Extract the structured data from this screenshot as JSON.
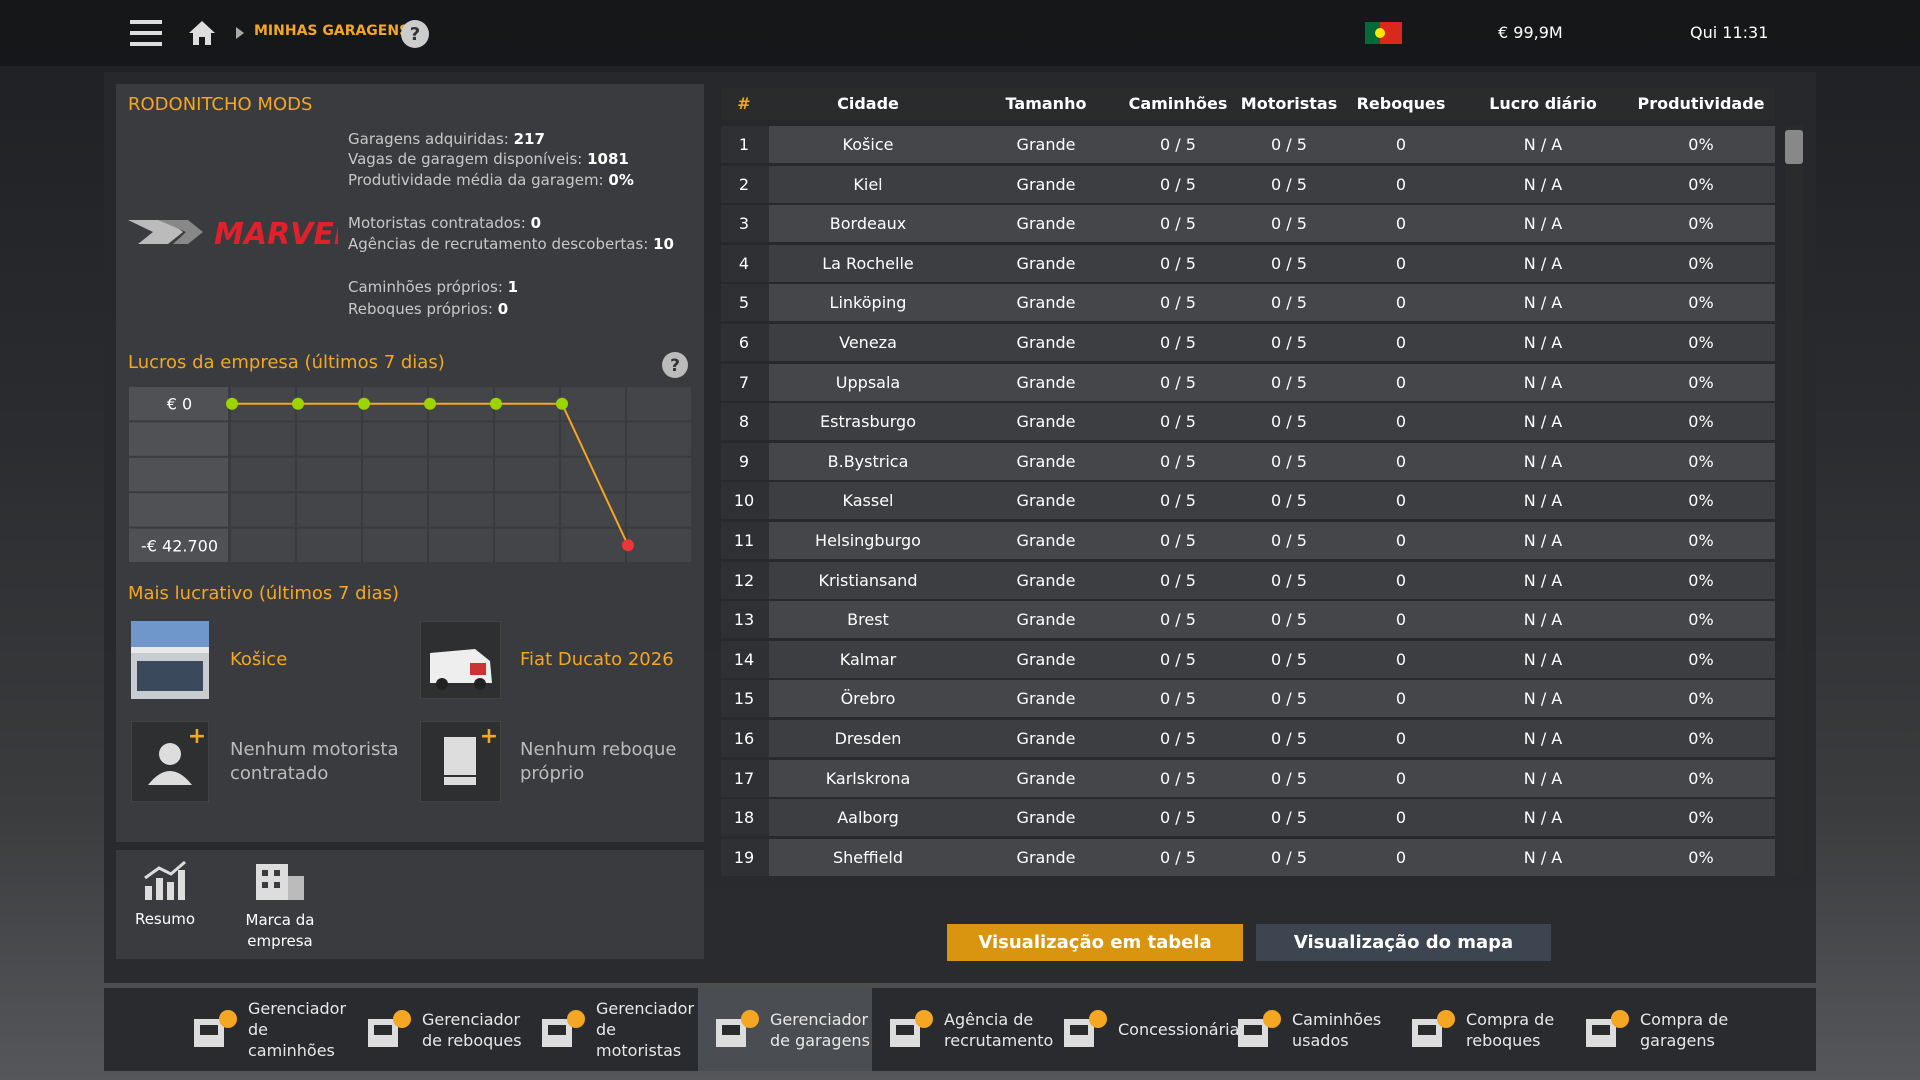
{
  "header": {
    "breadcrumb": "MINHAS GARAGENS",
    "money": "€ 99,9M",
    "time": "Qui 11:31"
  },
  "company": {
    "name": "RODONITCHO MODS",
    "logo": "MARVEL",
    "stats": [
      [
        {
          "label": "Garagens adquiridas:",
          "value": 217
        },
        {
          "label": "Vagas de garagem disponíveis:",
          "value": 1081
        },
        {
          "label": "Produtividade média da garagem:",
          "value": "0%"
        }
      ],
      [
        {
          "label": "Motoristas contratados:",
          "value": 0
        },
        {
          "label": "Agências de recrutamento descobertas:",
          "value": 10
        }
      ],
      [
        {
          "label": "Caminhões próprios:",
          "value": 1
        },
        {
          "label": "Reboques próprios:",
          "value": 0
        }
      ]
    ]
  },
  "profit_chart": {
    "title": "Lucros da empresa (últimos 7 dias)",
    "labels": [
      {
        "value": 0,
        "label": "€ 0"
      },
      {
        "value": -42700,
        "label": "-€ 42.700"
      }
    ],
    "values": [
      0,
      0,
      0,
      0,
      0,
      0,
      -42700
    ]
  },
  "most_profitable": {
    "title": "Mais lucrativo (últimos 7 dias)",
    "garage": "Košice",
    "truck": "Fiat Ducato 2026",
    "driver": "Nenhum motorista contratado",
    "trailer": "Nenhum reboque próprio"
  },
  "left_tabs": [
    "Resumo",
    "Marca da empresa"
  ],
  "table": {
    "headers": [
      "#",
      "Cidade",
      "Tamanho",
      "Caminhões",
      "Motoristas",
      "Reboques",
      "Lucro diário",
      "Produtividade"
    ],
    "rows": [
      [
        1,
        "Košice",
        "Grande",
        "0 / 5",
        "0 / 5",
        0,
        "N / A",
        "0%"
      ],
      [
        2,
        "Kiel",
        "Grande",
        "0 / 5",
        "0 / 5",
        0,
        "N / A",
        "0%"
      ],
      [
        3,
        "Bordeaux",
        "Grande",
        "0 / 5",
        "0 / 5",
        0,
        "N / A",
        "0%"
      ],
      [
        4,
        "La Rochelle",
        "Grande",
        "0 / 5",
        "0 / 5",
        0,
        "N / A",
        "0%"
      ],
      [
        5,
        "Linköping",
        "Grande",
        "0 / 5",
        "0 / 5",
        0,
        "N / A",
        "0%"
      ],
      [
        6,
        "Veneza",
        "Grande",
        "0 / 5",
        "0 / 5",
        0,
        "N / A",
        "0%"
      ],
      [
        7,
        "Uppsala",
        "Grande",
        "0 / 5",
        "0 / 5",
        0,
        "N / A",
        "0%"
      ],
      [
        8,
        "Estrasburgo",
        "Grande",
        "0 / 5",
        "0 / 5",
        0,
        "N / A",
        "0%"
      ],
      [
        9,
        "B.Bystrica",
        "Grande",
        "0 / 5",
        "0 / 5",
        0,
        "N / A",
        "0%"
      ],
      [
        10,
        "Kassel",
        "Grande",
        "0 / 5",
        "0 / 5",
        0,
        "N / A",
        "0%"
      ],
      [
        11,
        "Helsingburgo",
        "Grande",
        "0 / 5",
        "0 / 5",
        0,
        "N / A",
        "0%"
      ],
      [
        12,
        "Kristiansand",
        "Grande",
        "0 / 5",
        "0 / 5",
        0,
        "N / A",
        "0%"
      ],
      [
        13,
        "Brest",
        "Grande",
        "0 / 5",
        "0 / 5",
        0,
        "N / A",
        "0%"
      ],
      [
        14,
        "Kalmar",
        "Grande",
        "0 / 5",
        "0 / 5",
        0,
        "N / A",
        "0%"
      ],
      [
        15,
        "Örebro",
        "Grande",
        "0 / 5",
        "0 / 5",
        0,
        "N / A",
        "0%"
      ],
      [
        16,
        "Dresden",
        "Grande",
        "0 / 5",
        "0 / 5",
        0,
        "N / A",
        "0%"
      ],
      [
        17,
        "Karlskrona",
        "Grande",
        "0 / 5",
        "0 / 5",
        0,
        "N / A",
        "0%"
      ],
      [
        18,
        "Aalborg",
        "Grande",
        "0 / 5",
        "0 / 5",
        0,
        "N / A",
        "0%"
      ],
      [
        19,
        "Sheffield",
        "Grande",
        "0 / 5",
        "0 / 5",
        0,
        "N / A",
        "0%"
      ]
    ]
  },
  "view_buttons": [
    "Visualização em tabela",
    "Visualização do mapa"
  ],
  "bottom_bar": [
    "Gerenciador de caminhões",
    "Gerenciador de reboques",
    "Gerenciador de motoristas",
    "Gerenciador de garagens",
    "Agência de recrutamento",
    "Concessionárias",
    "Caminhões usados",
    "Compra de reboques",
    "Compra de garagens"
  ]
}
